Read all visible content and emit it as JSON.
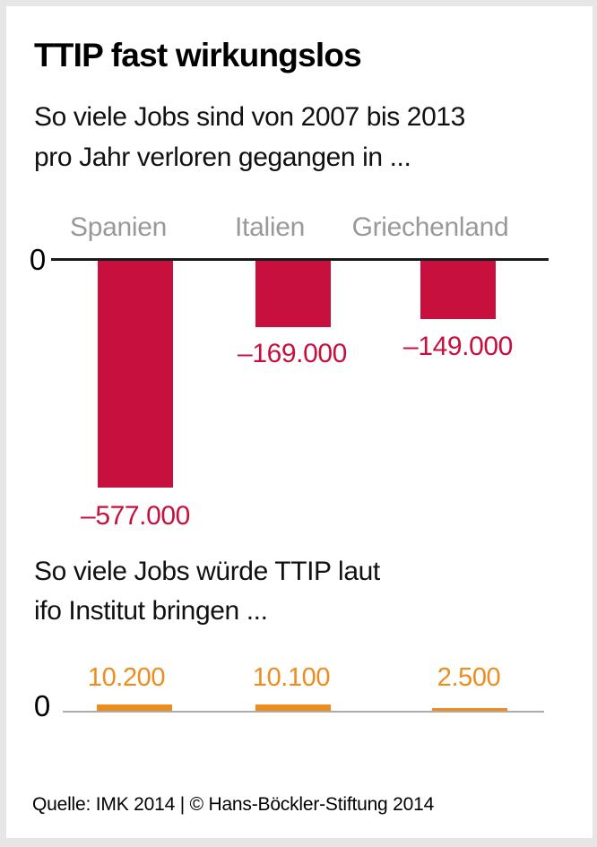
{
  "header": {
    "title": "TTIP fast wirkungslos",
    "subtitle_line1": "So viele Jobs sind von 2007 bis 2013",
    "subtitle_line2": "pro Jahr verloren gegangen in ..."
  },
  "section2": {
    "line1": "So viele Jobs würde TTIP laut",
    "line2": "ifo Institut bringen ..."
  },
  "axis": {
    "zero_label_top": "0",
    "zero_label_bottom": "0"
  },
  "footer": {
    "source": "Quelle: IMK 2014 | © Hans-Böckler-Stiftung 2014"
  },
  "colors": {
    "negative_bar": "#C8103E",
    "positive_bar": "#EE8C1E",
    "category_label": "#999999",
    "axis_line": "#1A1A1A",
    "axis_line_light": "#ABABAB",
    "frame_bg": "#E6E6E6"
  },
  "chart_data": [
    {
      "type": "bar",
      "title": "So viele Jobs sind von 2007 bis 2013 pro Jahr verloren gegangen in ...",
      "categories": [
        "Spanien",
        "Italien",
        "Griechenland"
      ],
      "values": [
        -577000,
        -169000,
        -149000
      ],
      "value_labels": [
        "–577.000",
        "–169.000",
        "–149.000"
      ],
      "xlabel": "",
      "ylabel": "",
      "ylim": [
        -600000,
        0
      ],
      "axis_zero_label": "0",
      "grid": false,
      "legend": false,
      "bar_color": "#C8103E"
    },
    {
      "type": "bar",
      "title": "So viele Jobs würde TTIP laut ifo Institut bringen ...",
      "categories": [
        "Spanien",
        "Italien",
        "Griechenland"
      ],
      "values": [
        10200,
        10100,
        2500
      ],
      "value_labels": [
        "10.200",
        "10.100",
        "2.500"
      ],
      "xlabel": "",
      "ylabel": "",
      "ylim": [
        0,
        12000
      ],
      "axis_zero_label": "0",
      "grid": false,
      "legend": false,
      "bar_color": "#EE8C1E"
    }
  ]
}
